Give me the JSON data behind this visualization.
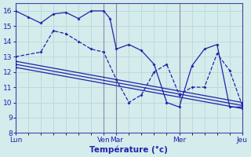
{
  "background_color": "#d4ecec",
  "grid_color": "#b8d8d8",
  "line_color": "#2222aa",
  "xlabel": "Température (°c)",
  "ylim": [
    8,
    16.5
  ],
  "yticks": [
    8,
    9,
    10,
    11,
    12,
    13,
    14,
    15,
    16
  ],
  "xlim": [
    0,
    18
  ],
  "day_positions": [
    0,
    7,
    8,
    13,
    18
  ],
  "day_labels": [
    "Lun",
    "Ven",
    "Mar",
    "Mer",
    "Jeu"
  ],
  "series": [
    {
      "x": [
        0,
        1,
        2,
        3,
        4,
        5,
        6,
        7,
        7.5,
        8,
        9,
        10,
        11,
        12,
        13,
        14,
        15,
        16,
        17,
        18
      ],
      "y": [
        16.0,
        15.6,
        15.2,
        15.8,
        15.9,
        15.5,
        16.0,
        16.0,
        15.5,
        13.5,
        13.8,
        13.4,
        12.5,
        10.0,
        9.7,
        12.4,
        13.5,
        13.8,
        9.7,
        9.7
      ],
      "style": "-",
      "marker": "D",
      "markersize": 2.0
    },
    {
      "x": [
        0,
        2,
        3,
        4,
        5,
        6,
        7,
        8,
        9,
        10,
        11,
        12,
        13,
        14,
        15,
        16,
        17,
        18
      ],
      "y": [
        13.0,
        13.3,
        14.7,
        14.5,
        14.0,
        13.5,
        13.3,
        11.5,
        10.0,
        10.5,
        12.0,
        12.5,
        10.5,
        11.0,
        11.0,
        13.2,
        12.1,
        9.8
      ],
      "style": "--",
      "marker": "D",
      "markersize": 2.0
    },
    {
      "x": [
        0,
        18
      ],
      "y": [
        12.7,
        10.0
      ],
      "style": "-",
      "marker": "D",
      "markersize": 2.0
    },
    {
      "x": [
        0,
        18
      ],
      "y": [
        12.5,
        9.8
      ],
      "style": "-",
      "marker": "D",
      "markersize": 2.0
    },
    {
      "x": [
        0,
        18
      ],
      "y": [
        12.3,
        9.6
      ],
      "style": "-",
      "marker": "D",
      "markersize": 2.0
    }
  ]
}
